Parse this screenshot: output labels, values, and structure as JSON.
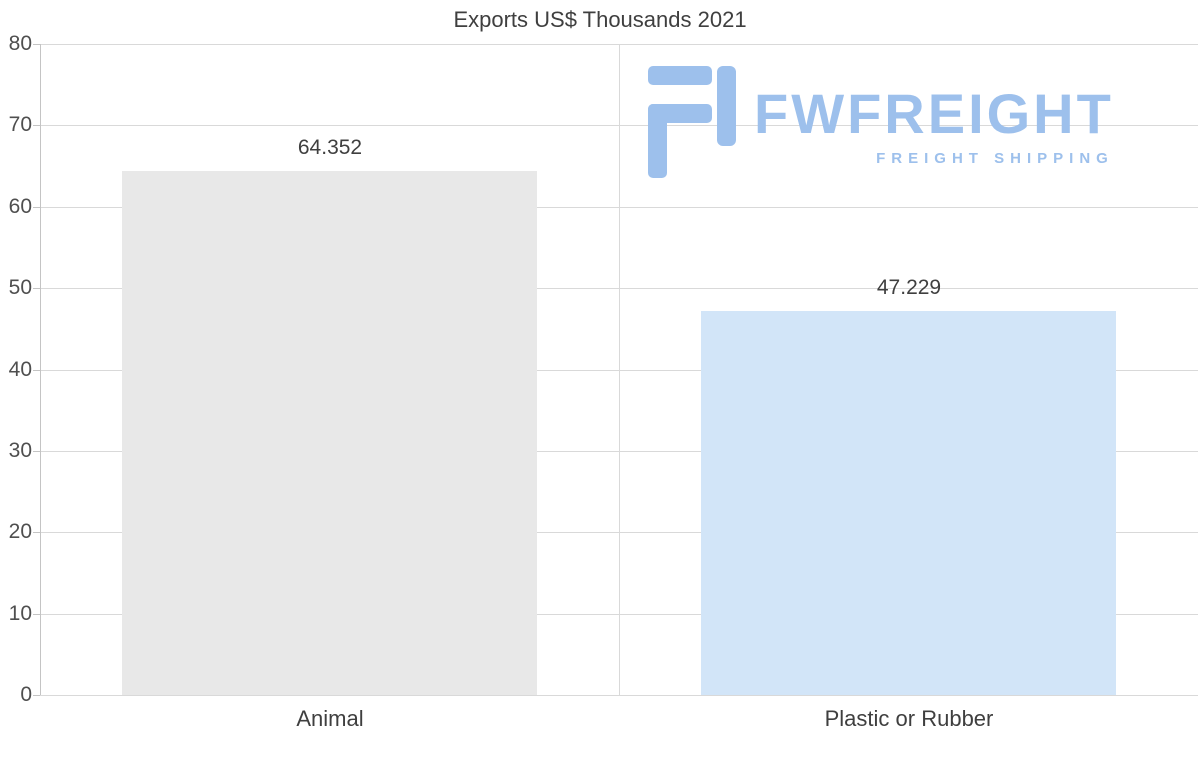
{
  "chart_data": {
    "type": "bar",
    "title": "Exports US$ Thousands 2021",
    "categories": [
      "Animal",
      "Plastic or Rubber"
    ],
    "values": [
      64.352,
      47.229
    ],
    "value_labels": [
      "64.352",
      "47.229"
    ],
    "bar_colors": [
      "#e8e8e8",
      "#d2e5f8"
    ],
    "ylim": [
      0,
      80
    ],
    "ytick_step": 10,
    "ytick_labels": [
      "0",
      "10",
      "20",
      "30",
      "40",
      "50",
      "60",
      "70",
      "80"
    ],
    "grid": "horizontal",
    "legend": "none",
    "xlabel": "",
    "ylabel": ""
  },
  "watermark": {
    "brand": "FWFREIGHT",
    "tagline": "FREIGHT SHIPPING",
    "color": "#9dc0ec"
  }
}
